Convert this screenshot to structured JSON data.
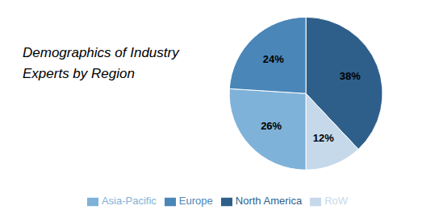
{
  "chart_data": {
    "type": "pie",
    "title": "Demographics of Industry\nExperts by Region",
    "categories": [
      "North America",
      "RoW",
      "Asia-Pacific",
      "Europe"
    ],
    "values": [
      38,
      12,
      26,
      24
    ],
    "value_labels": [
      "38%",
      "12%",
      "26%",
      "24%"
    ],
    "colors": [
      "#2E5F8A",
      "#C5D9EA",
      "#7FB2D8",
      "#4A86B8"
    ],
    "data_labels": true,
    "legend": "bottom"
  }
}
